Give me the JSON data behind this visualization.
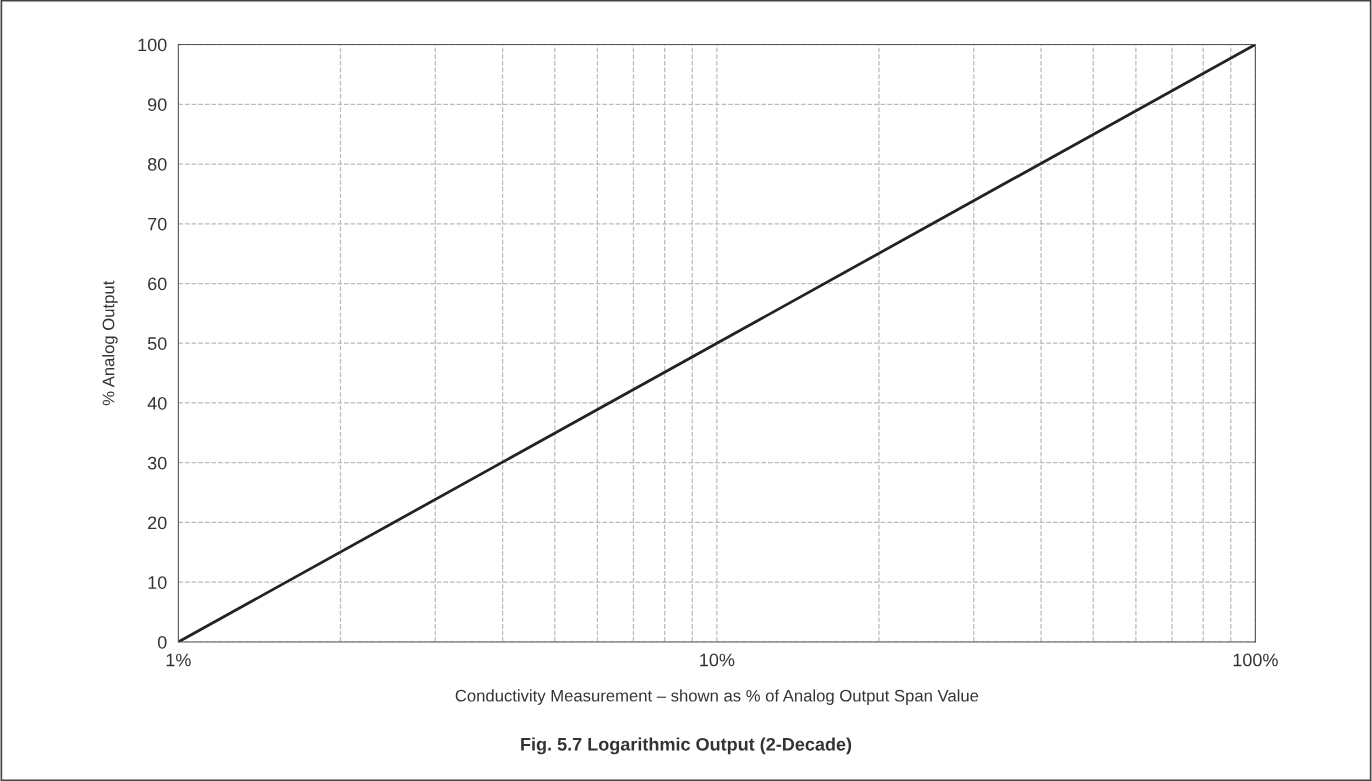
{
  "chart_data": {
    "type": "line",
    "xlabel": "Conductivity Measurement – shown as % of Analog Output Span Value",
    "ylabel": "% Analog Output",
    "annotations": [
      "Fig. 5.7 Logarithmic Output (2-Decade)"
    ],
    "log": "x",
    "x": [
      1,
      100
    ],
    "series": [
      {
        "color": "#222222",
        "values": [
          0,
          100
        ]
      }
    ],
    "xlim": [
      1,
      100
    ],
    "ylim": [
      0,
      100
    ],
    "xticks": [
      {
        "value": 1,
        "label": "1%"
      },
      {
        "value": 2,
        "label": null
      },
      {
        "value": 3,
        "label": null
      },
      {
        "value": 4,
        "label": null
      },
      {
        "value": 5,
        "label": null
      },
      {
        "value": 6,
        "label": null
      },
      {
        "value": 7,
        "label": null
      },
      {
        "value": 8,
        "label": null
      },
      {
        "value": 9,
        "label": null
      },
      {
        "value": 10,
        "label": "10%"
      },
      {
        "value": 20,
        "label": null
      },
      {
        "value": 30,
        "label": null
      },
      {
        "value": 40,
        "label": null
      },
      {
        "value": 50,
        "label": null
      },
      {
        "value": 60,
        "label": null
      },
      {
        "value": 70,
        "label": null
      },
      {
        "value": 80,
        "label": null
      },
      {
        "value": 90,
        "label": null
      },
      {
        "value": 100,
        "label": "100%"
      }
    ],
    "yticks": [
      0,
      10,
      20,
      30,
      40,
      50,
      60,
      70,
      80,
      90,
      100
    ],
    "grid": true,
    "line_style": "solid",
    "marker": "none"
  }
}
